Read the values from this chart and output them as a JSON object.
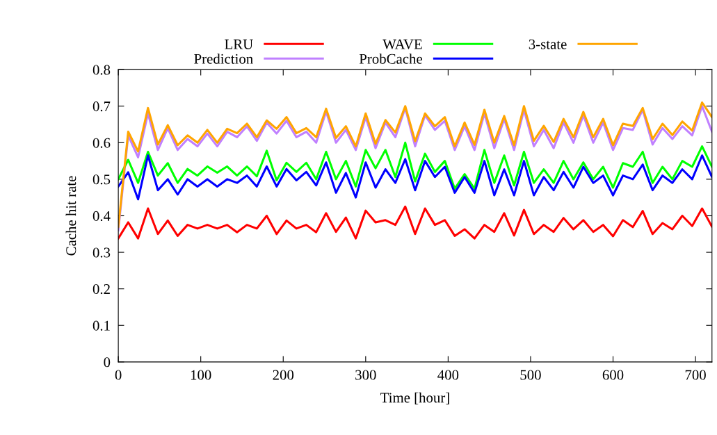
{
  "chart_data": {
    "type": "line",
    "xlabel": "Time [hour]",
    "ylabel": "Cache hit rate",
    "x": [
      0,
      12,
      24,
      36,
      48,
      60,
      72,
      84,
      96,
      108,
      120,
      132,
      144,
      156,
      168,
      180,
      192,
      204,
      216,
      228,
      240,
      252,
      264,
      276,
      288,
      300,
      312,
      324,
      336,
      348,
      360,
      372,
      384,
      396,
      408,
      420,
      432,
      444,
      456,
      468,
      480,
      492,
      504,
      516,
      528,
      540,
      552,
      564,
      576,
      588,
      600,
      612,
      624,
      636,
      648,
      660,
      672,
      684,
      696,
      708,
      720
    ],
    "xlim": [
      0,
      720
    ],
    "xticks": [
      0,
      100,
      200,
      300,
      400,
      500,
      600,
      700
    ],
    "ylim": [
      0,
      0.8
    ],
    "yticks": [
      0,
      0.1,
      0.2,
      0.3,
      0.4,
      0.5,
      0.6,
      0.7,
      0.8
    ],
    "grid": false,
    "legend": "top",
    "marker": "none",
    "line_style": "solid",
    "series": [
      {
        "name": "LRU",
        "color": "#ff0000",
        "values": [
          0.338,
          0.382,
          0.338,
          0.42,
          0.35,
          0.387,
          0.345,
          0.375,
          0.365,
          0.375,
          0.365,
          0.375,
          0.355,
          0.375,
          0.365,
          0.4,
          0.35,
          0.387,
          0.365,
          0.375,
          0.355,
          0.407,
          0.356,
          0.395,
          0.338,
          0.414,
          0.382,
          0.388,
          0.375,
          0.425,
          0.35,
          0.42,
          0.375,
          0.388,
          0.345,
          0.363,
          0.338,
          0.375,
          0.356,
          0.407,
          0.346,
          0.416,
          0.35,
          0.375,
          0.356,
          0.394,
          0.363,
          0.388,
          0.356,
          0.375,
          0.344,
          0.388,
          0.369,
          0.413,
          0.35,
          0.38,
          0.363,
          0.4,
          0.372,
          0.42,
          0.37
        ]
      },
      {
        "name": "Prediction",
        "color": "#c080ff",
        "values": [
          0.36,
          0.62,
          0.56,
          0.68,
          0.58,
          0.64,
          0.58,
          0.61,
          0.59,
          0.625,
          0.59,
          0.63,
          0.615,
          0.645,
          0.605,
          0.655,
          0.625,
          0.66,
          0.615,
          0.63,
          0.6,
          0.685,
          0.6,
          0.635,
          0.58,
          0.67,
          0.585,
          0.655,
          0.615,
          0.695,
          0.59,
          0.675,
          0.635,
          0.66,
          0.58,
          0.645,
          0.58,
          0.68,
          0.585,
          0.665,
          0.58,
          0.69,
          0.59,
          0.635,
          0.585,
          0.655,
          0.6,
          0.675,
          0.6,
          0.655,
          0.58,
          0.64,
          0.635,
          0.69,
          0.595,
          0.64,
          0.61,
          0.645,
          0.62,
          0.7,
          0.63
        ]
      },
      {
        "name": "WAVE",
        "color": "#00ff00",
        "values": [
          0.5,
          0.553,
          0.49,
          0.575,
          0.51,
          0.544,
          0.49,
          0.528,
          0.51,
          0.535,
          0.518,
          0.535,
          0.51,
          0.535,
          0.508,
          0.578,
          0.497,
          0.545,
          0.52,
          0.545,
          0.5,
          0.575,
          0.5,
          0.55,
          0.48,
          0.58,
          0.53,
          0.58,
          0.506,
          0.6,
          0.494,
          0.57,
          0.52,
          0.55,
          0.474,
          0.514,
          0.474,
          0.58,
          0.49,
          0.565,
          0.483,
          0.575,
          0.49,
          0.527,
          0.49,
          0.55,
          0.5,
          0.546,
          0.5,
          0.534,
          0.477,
          0.544,
          0.534,
          0.575,
          0.49,
          0.534,
          0.5,
          0.55,
          0.534,
          0.59,
          0.534
        ]
      },
      {
        "name": "ProbCache",
        "color": "#0000ff",
        "values": [
          0.48,
          0.519,
          0.445,
          0.565,
          0.47,
          0.5,
          0.458,
          0.5,
          0.48,
          0.5,
          0.48,
          0.5,
          0.49,
          0.51,
          0.48,
          0.535,
          0.48,
          0.528,
          0.497,
          0.52,
          0.483,
          0.546,
          0.463,
          0.517,
          0.45,
          0.546,
          0.477,
          0.527,
          0.49,
          0.555,
          0.47,
          0.55,
          0.506,
          0.534,
          0.463,
          0.506,
          0.463,
          0.55,
          0.456,
          0.527,
          0.456,
          0.55,
          0.456,
          0.506,
          0.47,
          0.52,
          0.477,
          0.534,
          0.49,
          0.51,
          0.456,
          0.51,
          0.5,
          0.54,
          0.47,
          0.51,
          0.49,
          0.527,
          0.5,
          0.565,
          0.506
        ]
      },
      {
        "name": "3-state",
        "color": "#ffa500",
        "values": [
          0.37,
          0.63,
          0.576,
          0.695,
          0.595,
          0.648,
          0.593,
          0.62,
          0.6,
          0.635,
          0.6,
          0.638,
          0.626,
          0.652,
          0.615,
          0.661,
          0.638,
          0.67,
          0.626,
          0.64,
          0.615,
          0.693,
          0.613,
          0.645,
          0.59,
          0.68,
          0.597,
          0.662,
          0.628,
          0.7,
          0.604,
          0.68,
          0.645,
          0.67,
          0.59,
          0.655,
          0.594,
          0.69,
          0.6,
          0.673,
          0.593,
          0.7,
          0.605,
          0.646,
          0.602,
          0.665,
          0.615,
          0.684,
          0.615,
          0.665,
          0.593,
          0.652,
          0.646,
          0.695,
          0.61,
          0.652,
          0.621,
          0.658,
          0.633,
          0.71,
          0.67
        ]
      }
    ]
  }
}
